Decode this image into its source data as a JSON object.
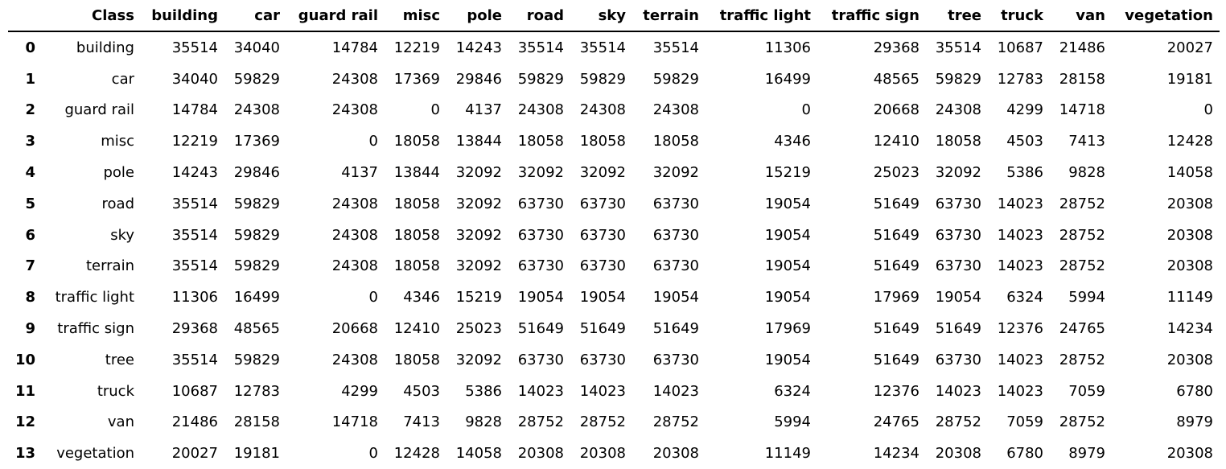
{
  "table": {
    "columns": [
      "",
      "Class",
      "building",
      "car",
      "guard rail",
      "misc",
      "pole",
      "road",
      "sky",
      "terrain",
      "traffic light",
      "traffic sign",
      "tree",
      "truck",
      "van",
      "vegetation"
    ],
    "rows": [
      {
        "index": "0",
        "cells": [
          "building",
          "35514",
          "34040",
          "14784",
          "12219",
          "14243",
          "35514",
          "35514",
          "35514",
          "11306",
          "29368",
          "35514",
          "10687",
          "21486",
          "20027"
        ]
      },
      {
        "index": "1",
        "cells": [
          "car",
          "34040",
          "59829",
          "24308",
          "17369",
          "29846",
          "59829",
          "59829",
          "59829",
          "16499",
          "48565",
          "59829",
          "12783",
          "28158",
          "19181"
        ]
      },
      {
        "index": "2",
        "cells": [
          "guard rail",
          "14784",
          "24308",
          "24308",
          "0",
          "4137",
          "24308",
          "24308",
          "24308",
          "0",
          "20668",
          "24308",
          "4299",
          "14718",
          "0"
        ]
      },
      {
        "index": "3",
        "cells": [
          "misc",
          "12219",
          "17369",
          "0",
          "18058",
          "13844",
          "18058",
          "18058",
          "18058",
          "4346",
          "12410",
          "18058",
          "4503",
          "7413",
          "12428"
        ]
      },
      {
        "index": "4",
        "cells": [
          "pole",
          "14243",
          "29846",
          "4137",
          "13844",
          "32092",
          "32092",
          "32092",
          "32092",
          "15219",
          "25023",
          "32092",
          "5386",
          "9828",
          "14058"
        ]
      },
      {
        "index": "5",
        "cells": [
          "road",
          "35514",
          "59829",
          "24308",
          "18058",
          "32092",
          "63730",
          "63730",
          "63730",
          "19054",
          "51649",
          "63730",
          "14023",
          "28752",
          "20308"
        ]
      },
      {
        "index": "6",
        "cells": [
          "sky",
          "35514",
          "59829",
          "24308",
          "18058",
          "32092",
          "63730",
          "63730",
          "63730",
          "19054",
          "51649",
          "63730",
          "14023",
          "28752",
          "20308"
        ]
      },
      {
        "index": "7",
        "cells": [
          "terrain",
          "35514",
          "59829",
          "24308",
          "18058",
          "32092",
          "63730",
          "63730",
          "63730",
          "19054",
          "51649",
          "63730",
          "14023",
          "28752",
          "20308"
        ]
      },
      {
        "index": "8",
        "cells": [
          "traffic light",
          "11306",
          "16499",
          "0",
          "4346",
          "15219",
          "19054",
          "19054",
          "19054",
          "19054",
          "17969",
          "19054",
          "6324",
          "5994",
          "11149"
        ]
      },
      {
        "index": "9",
        "cells": [
          "traffic sign",
          "29368",
          "48565",
          "20668",
          "12410",
          "25023",
          "51649",
          "51649",
          "51649",
          "17969",
          "51649",
          "51649",
          "12376",
          "24765",
          "14234"
        ]
      },
      {
        "index": "10",
        "cells": [
          "tree",
          "35514",
          "59829",
          "24308",
          "18058",
          "32092",
          "63730",
          "63730",
          "63730",
          "19054",
          "51649",
          "63730",
          "14023",
          "28752",
          "20308"
        ]
      },
      {
        "index": "11",
        "cells": [
          "truck",
          "10687",
          "12783",
          "4299",
          "4503",
          "5386",
          "14023",
          "14023",
          "14023",
          "6324",
          "12376",
          "14023",
          "14023",
          "7059",
          "6780"
        ]
      },
      {
        "index": "12",
        "cells": [
          "van",
          "21486",
          "28158",
          "14718",
          "7413",
          "9828",
          "28752",
          "28752",
          "28752",
          "5994",
          "24765",
          "28752",
          "7059",
          "28752",
          "8979"
        ]
      },
      {
        "index": "13",
        "cells": [
          "vegetation",
          "20027",
          "19181",
          "0",
          "12428",
          "14058",
          "20308",
          "20308",
          "20308",
          "11149",
          "14234",
          "20308",
          "6780",
          "8979",
          "20308"
        ]
      }
    ]
  }
}
